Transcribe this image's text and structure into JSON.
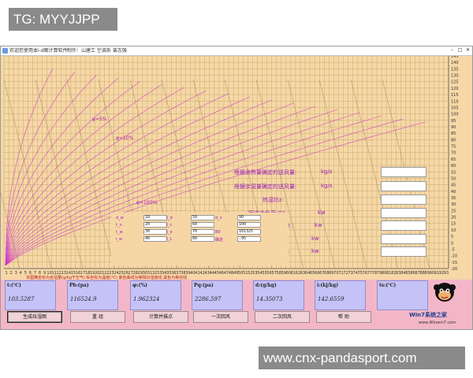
{
  "watermarks": {
    "top": "TG: MYYJJPP",
    "bottom": "www.cnx-pandasport.com"
  },
  "window": {
    "title": "欢迎您使用本i-d图计算软件",
    "menu": [
      "制作：山建工 空调系 曾志强"
    ],
    "controls": [
      "–",
      "□",
      "✕"
    ]
  },
  "chart": {
    "curve_labels": [
      "φ=5%",
      "φ=10%",
      "φ=100%"
    ],
    "x_ticks": [
      "1",
      "2",
      "3",
      "4",
      "5",
      "6",
      "7",
      "8",
      "9",
      "10",
      "11",
      "12",
      "13",
      "14",
      "15",
      "16",
      "17",
      "18",
      "19",
      "20",
      "21",
      "22",
      "23",
      "24",
      "25",
      "26",
      "27",
      "28",
      "29",
      "30",
      "31",
      "32",
      "33",
      "34",
      "35",
      "36",
      "37",
      "38",
      "39",
      "40",
      "41",
      "42",
      "43",
      "44",
      "45",
      "46",
      "47",
      "48",
      "49",
      "50",
      "51",
      "52",
      "53",
      "54",
      "55",
      "56",
      "57",
      "58",
      "59",
      "60",
      "61",
      "62",
      "63",
      "64",
      "65",
      "66",
      "67",
      "68",
      "69",
      "70",
      "71",
      "72",
      "73",
      "74",
      "75",
      "76",
      "77",
      "78",
      "79",
      "80",
      "81",
      "82",
      "83",
      "84",
      "85",
      "86",
      "87",
      "88",
      "89",
      "90",
      "91",
      "92",
      "93"
    ],
    "y_ticks": [
      "145",
      "140",
      "135",
      "130",
      "125",
      "120",
      "115",
      "110",
      "105",
      "100",
      "95",
      "90",
      "85",
      "80",
      "75",
      "70",
      "65",
      "60",
      "55",
      "50",
      "45",
      "40",
      "35",
      "30",
      "25",
      "20",
      "15",
      "10",
      "5",
      "0",
      "-5",
      "-10",
      "-15",
      "-20"
    ]
  },
  "calc_panel": {
    "rows": [
      {
        "label": "根据余热量确定的送风量:",
        "unit": "kg/s",
        "value": ""
      },
      {
        "label": "根据余湿量确定的送风量:",
        "unit": "kg/s",
        "value": ""
      },
      {
        "label": "热湿比ε:",
        "unit": "",
        "value": ""
      },
      {
        "label": "室内冷负荷 Q1 :",
        "unit": "kw",
        "value": ""
      },
      {
        "label": "冷负荷 Q2 :",
        "unit": "kw",
        "value": ""
      },
      {
        "label": "再热量 :",
        "unit": "kw",
        "value": ""
      },
      {
        "label": "系统冷量 :",
        "unit": "kw",
        "value": ""
      }
    ]
  },
  "inputs": {
    "col1_labels": [
      "d_w",
      "t_n",
      "t_w",
      "i_w"
    ],
    "col1_values": [
      "10",
      "20",
      "30",
      "40"
    ],
    "col2_labels": [
      "t_d",
      "t_c",
      "t_o",
      "t_L"
    ],
    "col2_values": [
      "50",
      "60",
      "70",
      "80"
    ],
    "col3_labels": [
      "d_n",
      "",
      "B0",
      "确定"
    ],
    "col3_values": [
      "90",
      "100",
      "101325",
      ".95"
    ]
  },
  "note": "本图横坐标为含湿量(g/kg干空气) 纵坐标为温度(℃) 紫色曲线为等相对湿度线 黑色为等焓线",
  "results": [
    {
      "label": "t:(℃)",
      "value": "103.5287"
    },
    {
      "label": "Pb:(pa)",
      "value": "116524.9"
    },
    {
      "label": "φ:(%)",
      "value": "1.962324"
    },
    {
      "label": "Pq:(pa)",
      "value": "2286.597"
    },
    {
      "label": "d:(g/kg)",
      "value": "14.35073"
    },
    {
      "label": "i:(kj/kg)",
      "value": "142.6559"
    },
    {
      "label": "ts:(℃)",
      "value": ""
    }
  ],
  "buttons": [
    "生成焓湿图",
    "重 组",
    "计算并描点",
    "一次回风",
    "二次回风",
    "帮 助"
  ],
  "branding": {
    "logo": "Win7系统之家",
    "url": "www.Winwin7.com"
  },
  "colors": {
    "bg": "#f6d7a6",
    "grid": "#c6ab6e",
    "curve": "#cc33cc",
    "result": "#c4c2f6",
    "pink": "#f3b6c8"
  }
}
